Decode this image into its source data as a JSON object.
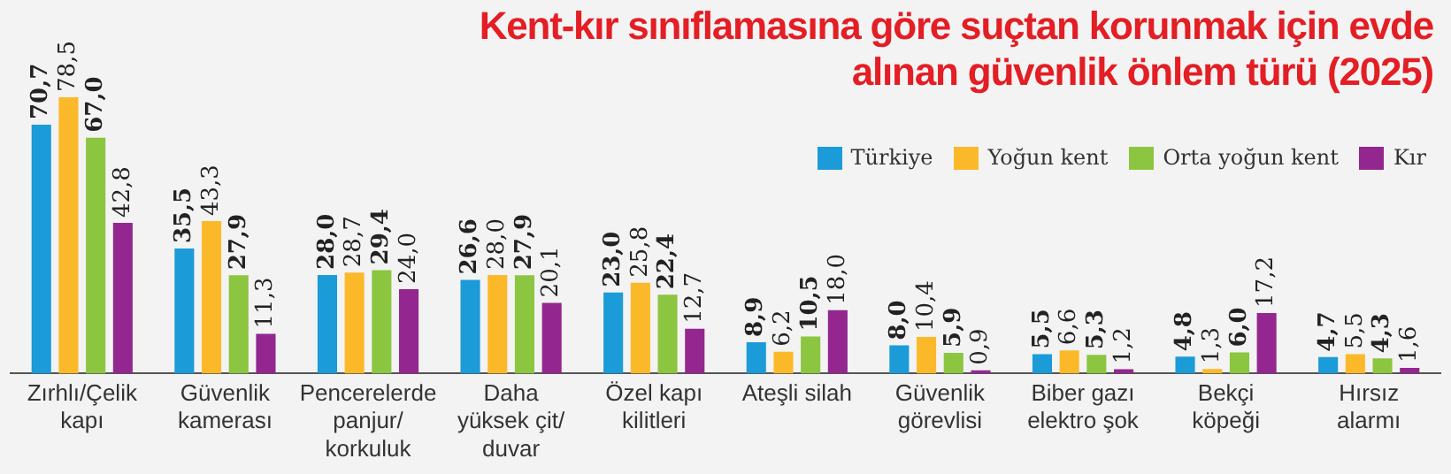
{
  "chart_data": {
    "type": "bar",
    "title": "Kent-kır sınıflamasına göre suçtan korunmak için evde alınan güvenlik önlem türü (2025)",
    "categories": [
      "Zırhlı/Çelik kapı",
      "Güvenlik kamerası",
      "Pencerelerde panjur/korkuluk",
      "Daha yüksek çit/duvar",
      "Özel kapı kilitleri",
      "Ateşli silah",
      "Güvenlik görevlisi",
      "Biber gazı elektro şok",
      "Bekçi köpeği",
      "Hırsız alarmı"
    ],
    "series": [
      {
        "name": "Türkiye",
        "color": "#1b9bd8",
        "values": [
          70.7,
          35.5,
          28.0,
          26.6,
          23.0,
          8.9,
          8.0,
          5.5,
          4.8,
          4.7
        ],
        "value_labels": [
          "70,7",
          "35,5",
          "28,0",
          "26,6",
          "23,0",
          "8,9",
          "8,0",
          "5,5",
          "4,8",
          "4,7"
        ]
      },
      {
        "name": "Yoğun kent",
        "color": "#fbb92a",
        "values": [
          78.5,
          43.3,
          28.7,
          28.0,
          25.8,
          6.2,
          10.4,
          6.6,
          1.3,
          5.5
        ],
        "value_labels": [
          "78,5",
          "43,3",
          "28,7",
          "28,0",
          "25,8",
          "6,2",
          "10,4",
          "6,6",
          "1,3",
          "5,5"
        ]
      },
      {
        "name": "Orta yoğun kent",
        "color": "#8cc540",
        "values": [
          67.0,
          27.9,
          29.4,
          27.9,
          22.4,
          10.5,
          5.9,
          5.3,
          6.0,
          4.3
        ],
        "value_labels": [
          "67,0",
          "27,9",
          "29,4",
          "27,9",
          "22,4",
          "10,5",
          "5,9",
          "5,3",
          "6,0",
          "4,3"
        ]
      },
      {
        "name": "Kır",
        "color": "#93278f",
        "values": [
          42.8,
          11.3,
          24.0,
          20.1,
          12.7,
          18.0,
          0.9,
          1.2,
          17.2,
          1.6
        ],
        "value_labels": [
          "42,8",
          "11,3",
          "24,0",
          "20,1",
          "12,7",
          "18,0",
          "0,9",
          "1,2",
          "17,2",
          "1,6"
        ]
      }
    ],
    "legend": "top right",
    "grid": false
  }
}
